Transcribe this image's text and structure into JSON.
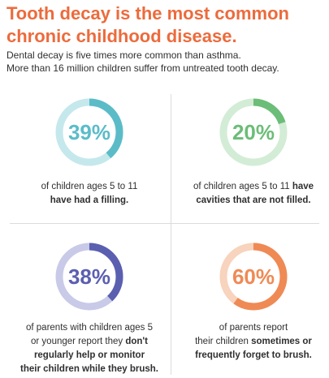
{
  "header": {
    "title_line1": "Tooth decay is the most common",
    "title_line2": "chronic childhood disease.",
    "intro_line1": "Dental decay is five times more common than asthma.",
    "intro_line2": "More than 16 million children suffer from untreated tooth decay."
  },
  "stats": [
    {
      "value": "39%",
      "percent": 39,
      "color": "#5bbcc8",
      "track": "#c5e8ec",
      "lines": [
        {
          "plain": "of children ages 5 to 11",
          "bold": ""
        },
        {
          "plain": "",
          "bold": "have had a filling."
        }
      ]
    },
    {
      "value": "20%",
      "percent": 20,
      "color": "#6cbd78",
      "track": "#d3ecd6",
      "lines": [
        {
          "plain": "of children ages 5 to 11 ",
          "bold": "have"
        },
        {
          "plain": "",
          "bold": "cavities that are not filled."
        }
      ]
    },
    {
      "value": "38%",
      "percent": 38,
      "color": "#5b5fb0",
      "track": "#c9cae8",
      "lines": [
        {
          "plain": "of parents with children ages 5",
          "bold": ""
        },
        {
          "plain": "or younger report they ",
          "bold": "don't"
        },
        {
          "plain": "",
          "bold": "regularly help or monitor"
        },
        {
          "plain": "",
          "bold": "their children while they brush."
        }
      ]
    },
    {
      "value": "60%",
      "percent": 60,
      "color": "#ef8a55",
      "track": "#f8d3bd",
      "lines": [
        {
          "plain": "of parents report",
          "bold": ""
        },
        {
          "plain": "their children ",
          "bold": "sometimes or"
        },
        {
          "plain": "",
          "bold": "frequently forget to brush."
        }
      ]
    }
  ]
}
